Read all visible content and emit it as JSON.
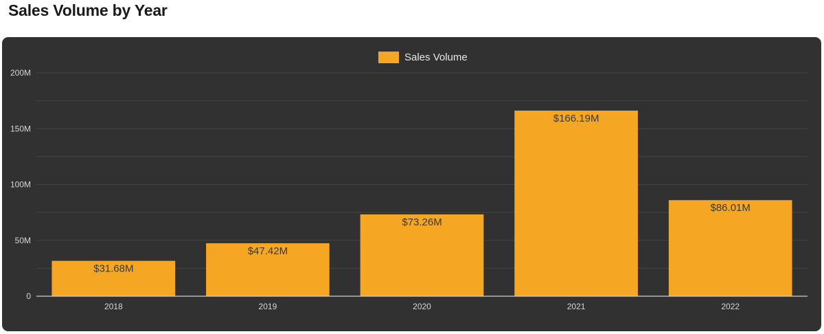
{
  "page": {
    "title": "Sales Volume by Year"
  },
  "chart_data": {
    "type": "bar",
    "title": "Sales Volume by Year",
    "categories": [
      "2018",
      "2019",
      "2020",
      "2021",
      "2022"
    ],
    "series": [
      {
        "name": "Sales Volume",
        "values": [
          31.68,
          47.42,
          73.26,
          166.19,
          86.01
        ],
        "value_labels": [
          "$31.68M",
          "$47.42M",
          "$73.26M",
          "$166.19M",
          "$86.01M"
        ]
      }
    ],
    "ylim": [
      0,
      200
    ],
    "yticks": [
      0,
      50,
      100,
      150,
      200
    ],
    "ytick_labels": [
      "0",
      "50M",
      "100M",
      "150M",
      "200M"
    ],
    "grid": true,
    "legend": "top-center",
    "colors": {
      "bar": "#f5a623",
      "background": "#313131",
      "grid": "#444444",
      "axis": "#cfcfcf",
      "tick_text": "#d6d6d6",
      "data_label": "#3a3a3a"
    }
  }
}
